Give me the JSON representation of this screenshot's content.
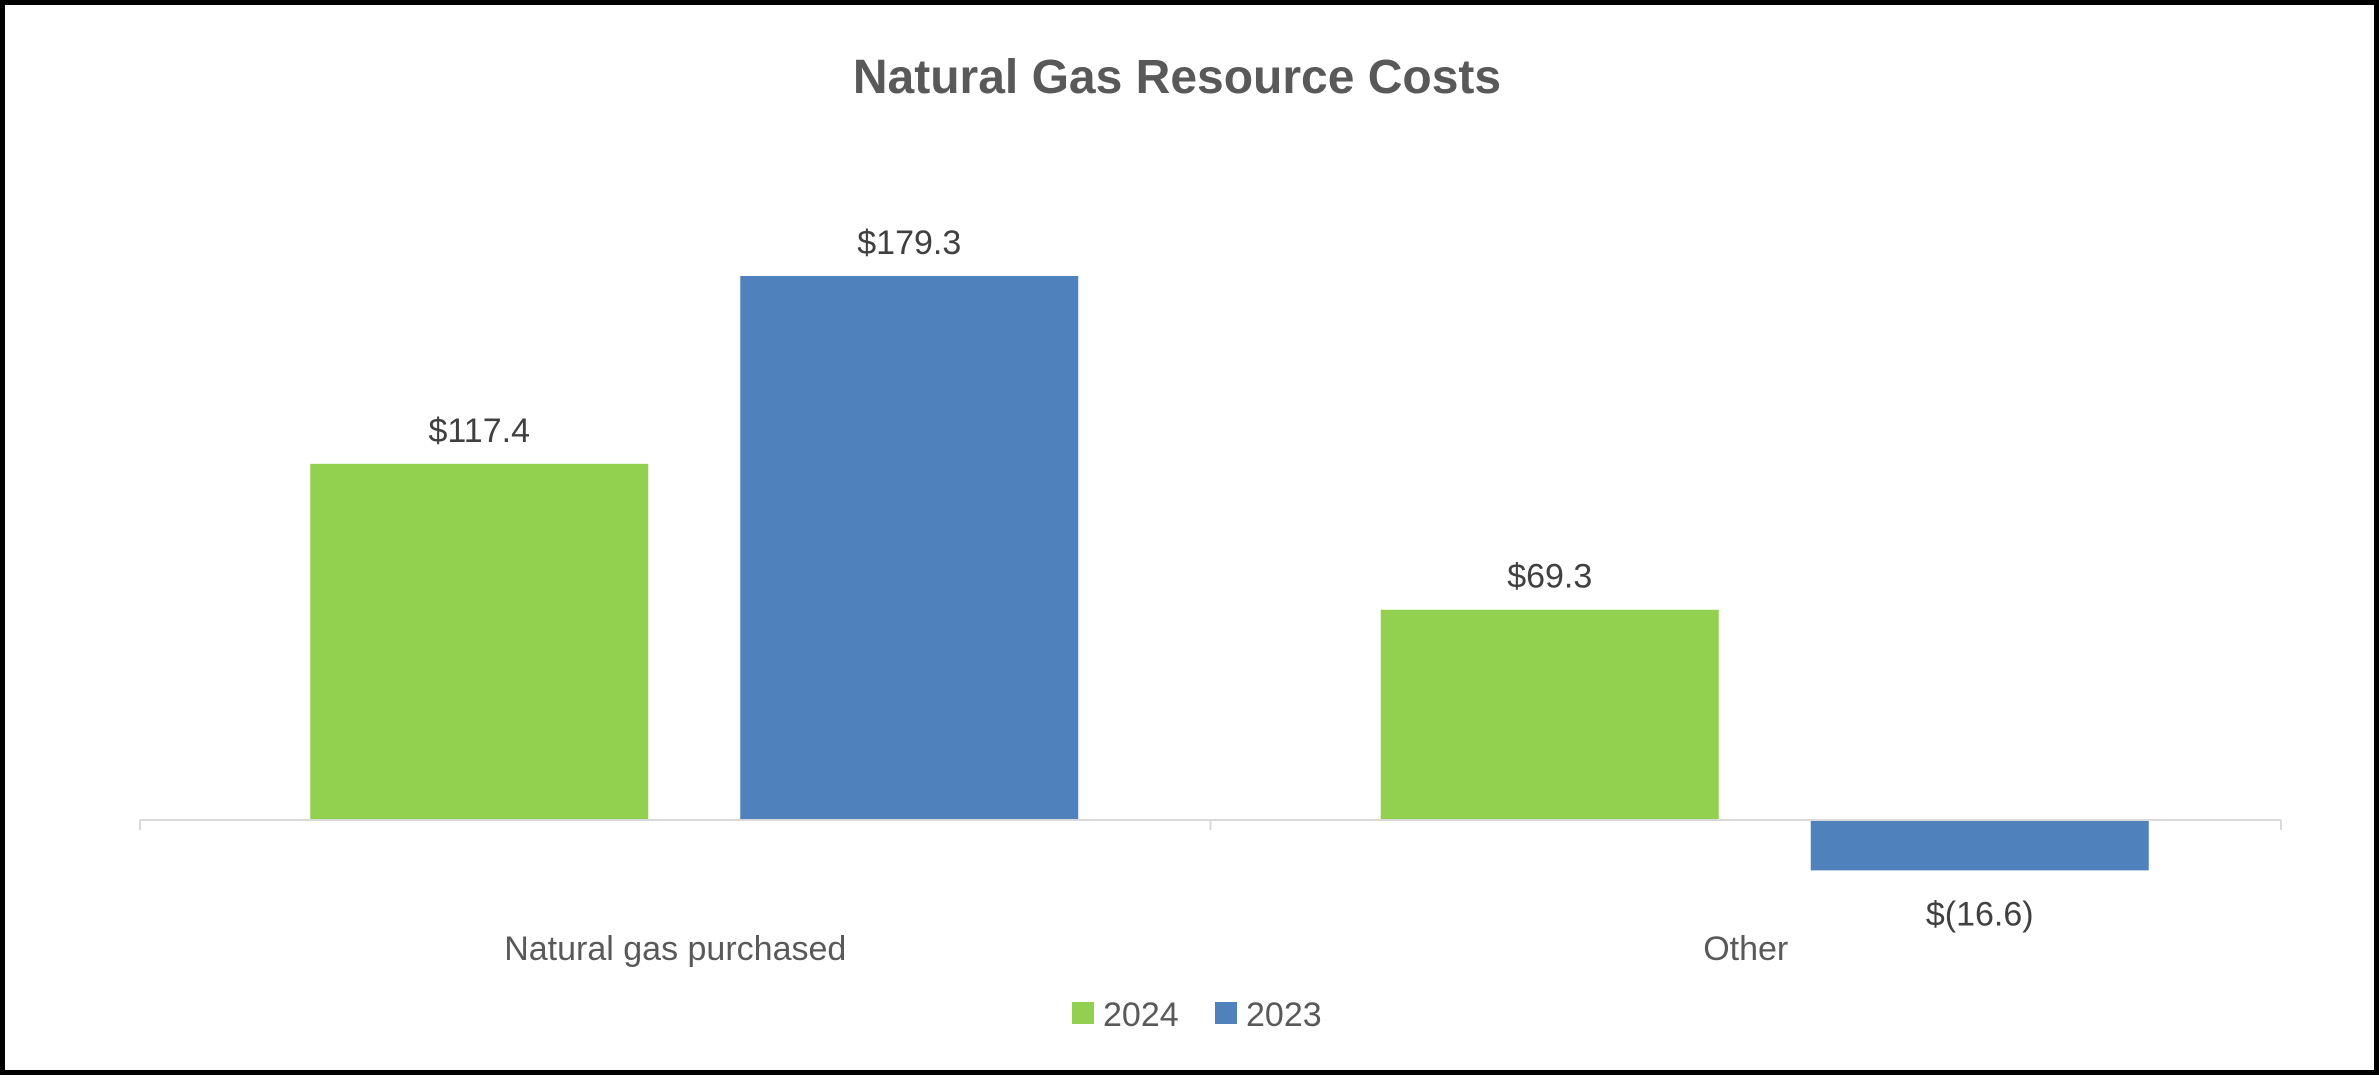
{
  "chart_data": {
    "type": "bar",
    "title": "Natural Gas Resource Costs",
    "xlabel": "",
    "ylabel": "",
    "categories": [
      "Natural gas purchased",
      "Other"
    ],
    "series": [
      {
        "name": "2024",
        "color": "#92d050",
        "values": [
          117.4,
          69.3
        ],
        "labels": [
          "$117.4",
          "$69.3"
        ]
      },
      {
        "name": "2023",
        "color": "#4f81bd",
        "values": [
          179.3,
          -16.6
        ],
        "labels": [
          "$179.3",
          "$(16.6)"
        ]
      }
    ],
    "ylim": [
      -16.6,
      179.3
    ],
    "grid": false,
    "legend_position": "bottom"
  }
}
